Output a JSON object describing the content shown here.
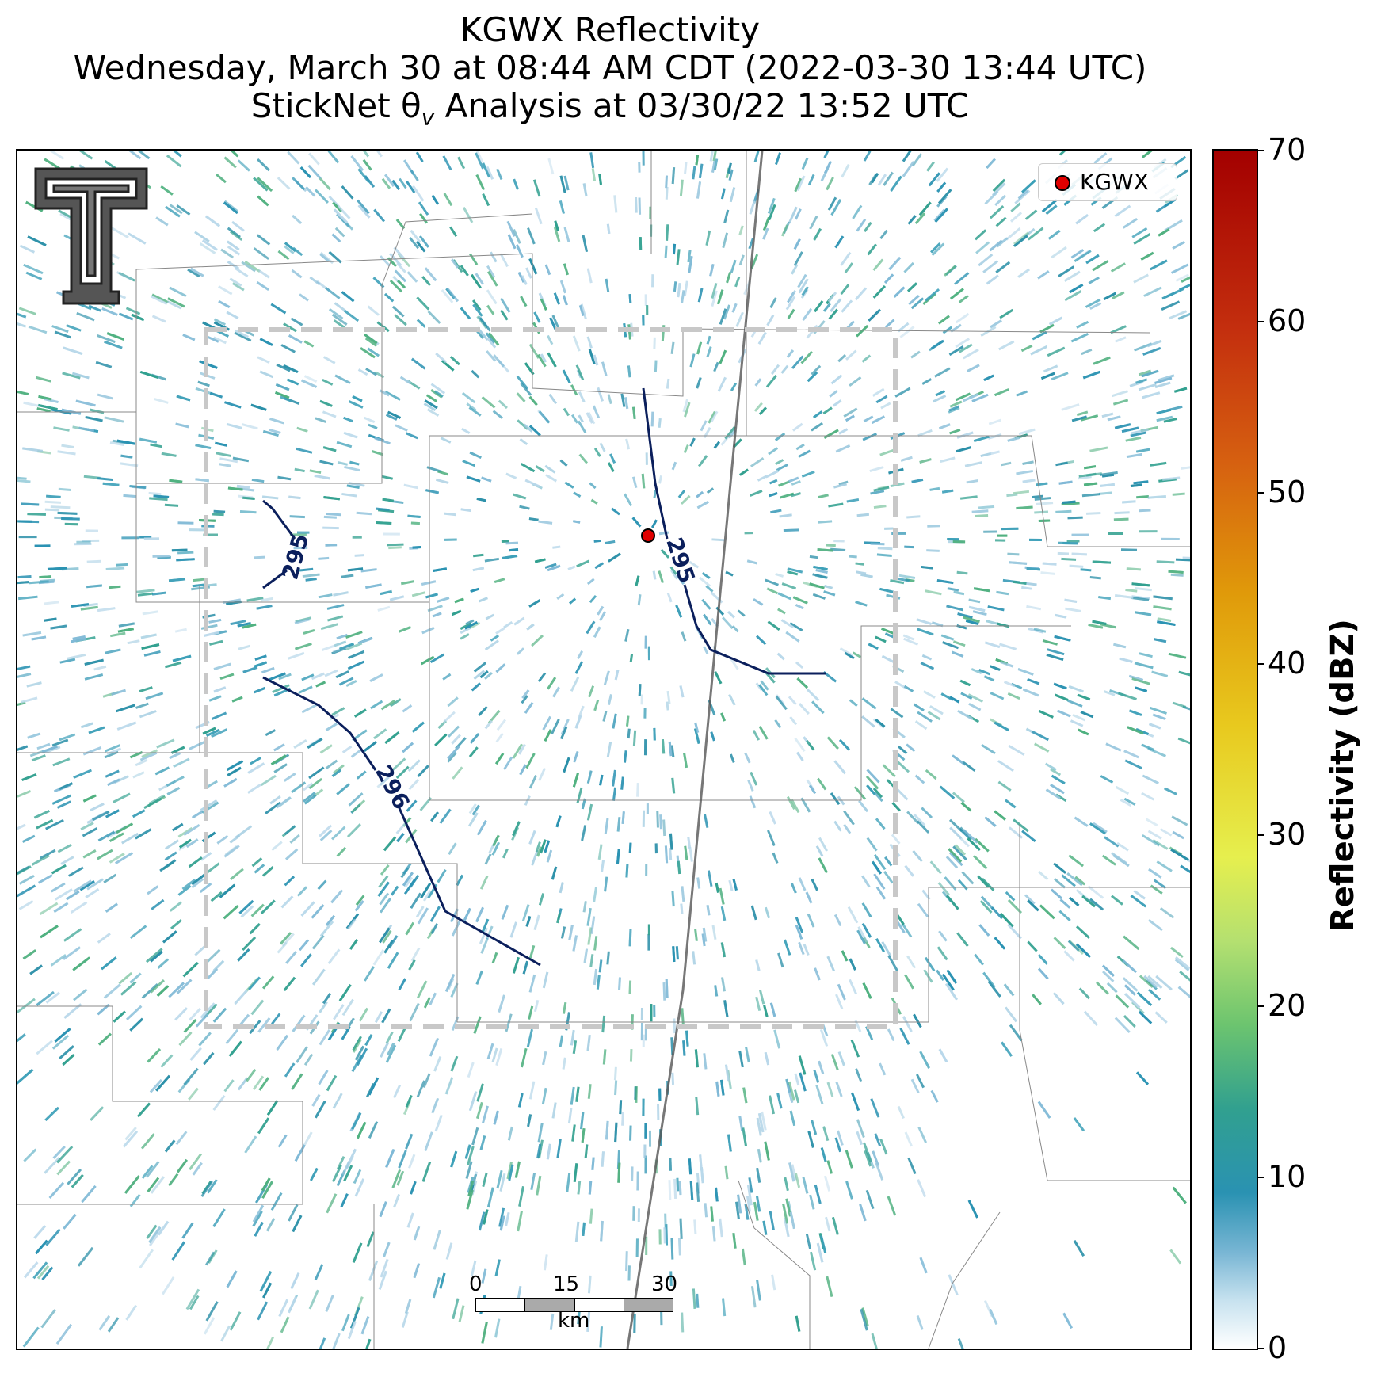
{
  "title": {
    "line1": "KGWX Reflectivity",
    "line2": "Wednesday, March 30 at 08:44 AM CDT (2022-03-30 13:44 UTC)",
    "line3_prefix": "StickNet θ",
    "line3_sub": "v",
    "line3_suffix": " Analysis at 03/30/22 13:52 UTC"
  },
  "legend": {
    "label": "KGWX",
    "marker_color": "#e00000"
  },
  "colorbar": {
    "label": "Reflectivity (dBZ)",
    "ticks": [
      "0",
      "10",
      "20",
      "30",
      "40",
      "50",
      "60",
      "70"
    ],
    "range": [
      0,
      70
    ]
  },
  "contours": [
    {
      "label": "295"
    },
    {
      "label": "295"
    },
    {
      "label": "296"
    }
  ],
  "scalebar": {
    "ticks": [
      "0",
      "15",
      "30"
    ],
    "unit": "km"
  },
  "colors": {
    "contour": "#0b1f5c",
    "box": "#c8c8c8",
    "radar_site": "#e00000"
  }
}
